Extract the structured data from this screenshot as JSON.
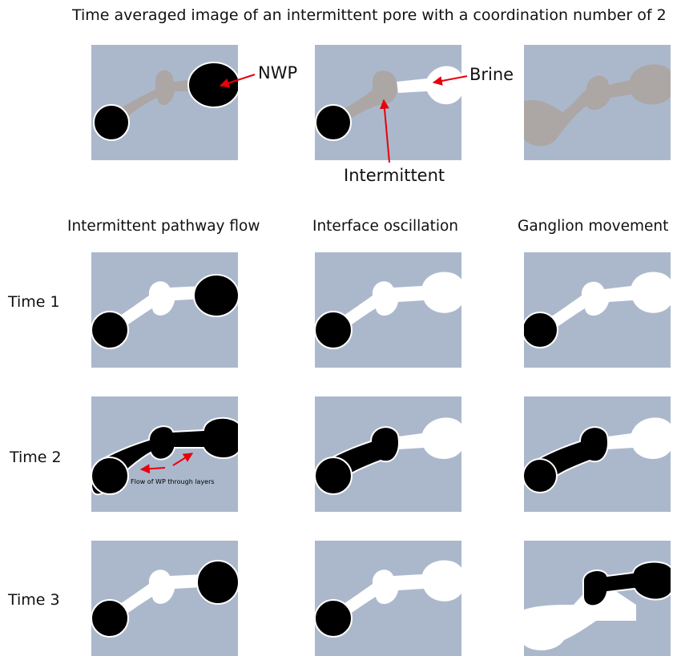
{
  "title": "Time averaged image of an intermittent pore with a coordination number of 2",
  "colors": {
    "background": "#abb8cc",
    "brine": "#ffffff",
    "nwp": "#000000",
    "intermittent": "#aca6a5",
    "arrow": "#e8000b"
  },
  "top_row": {
    "labels": {
      "nwp": "NWP",
      "brine": "Brine",
      "intermittent": "Intermittent"
    }
  },
  "columns": [
    {
      "heading": "Intermittent pathway flow"
    },
    {
      "heading": "Interface oscillation"
    },
    {
      "heading": "Ganglion movement"
    }
  ],
  "rows": [
    {
      "label": "Time 1"
    },
    {
      "label": "Time 2"
    },
    {
      "label": "Time 3"
    }
  ],
  "annotation": "Flow of WP through layers"
}
